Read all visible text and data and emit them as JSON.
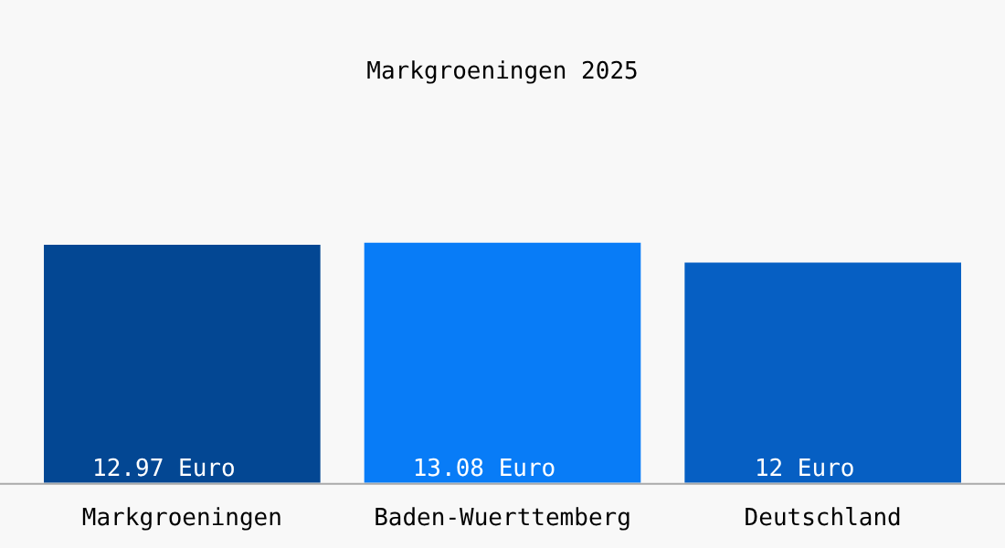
{
  "chart_data": {
    "type": "bar",
    "title": "Markgroeningen 2025",
    "categories": [
      "Markgroeningen",
      "Baden-Wuerttemberg",
      "Deutschland"
    ],
    "values": [
      12.97,
      13.08,
      12
    ],
    "colors": [
      "#034793",
      "#087cf7",
      "#065fc3"
    ],
    "value_labels": [
      "12.97 Euro",
      "13.08 Euro",
      "12 Euro"
    ]
  }
}
